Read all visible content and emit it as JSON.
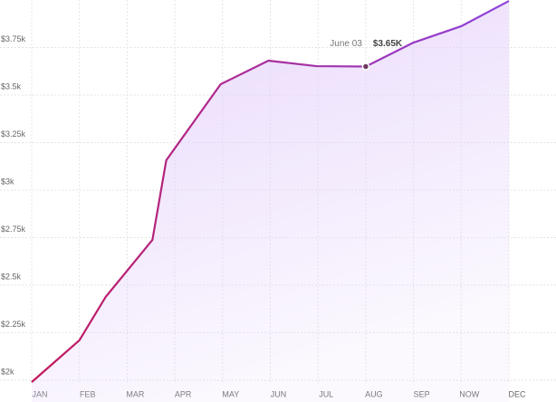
{
  "chart_data": {
    "type": "line",
    "x": [
      0,
      1,
      1.55,
      2.53,
      2.82,
      3.96,
      4.96,
      5.97,
      7,
      8,
      9,
      10
    ],
    "values": [
      1990,
      2210,
      2438,
      2738,
      3157,
      3557,
      3681,
      3652,
      3650,
      3776,
      3862,
      3995
    ],
    "color": "#c2185b",
    "color_end": "#8e44dd",
    "fill": "#e6d4fb",
    "xlim": [
      0,
      10
    ],
    "xticks": [
      {
        "value": 0,
        "label": "JAN"
      },
      {
        "value": 1,
        "label": "FEB"
      },
      {
        "value": 2,
        "label": "MAR"
      },
      {
        "value": 3,
        "label": "APR"
      },
      {
        "value": 4,
        "label": "MAY"
      },
      {
        "value": 5,
        "label": "JUN"
      },
      {
        "value": 6,
        "label": "JUL"
      },
      {
        "value": 7,
        "label": "AUG"
      },
      {
        "value": 8,
        "label": "SEP"
      },
      {
        "value": 9,
        "label": "NOW"
      },
      {
        "value": 10,
        "label": "DEC"
      }
    ],
    "ylim": [
      1990,
      4000
    ],
    "yticks": [
      {
        "value": 2000,
        "label": "$2k"
      },
      {
        "value": 2250,
        "label": "$2.25k"
      },
      {
        "value": 2500,
        "label": "$2.5k"
      },
      {
        "value": 2750,
        "label": "$2.75k"
      },
      {
        "value": 3000,
        "label": "$3k"
      },
      {
        "value": 3250,
        "label": "$3.25k"
      },
      {
        "value": 3500,
        "label": "$3.5k"
      },
      {
        "value": 3750,
        "label": "$3.75k"
      }
    ],
    "grid": true,
    "annotations": [
      {
        "x": 7,
        "value": 3650,
        "date": "June 03",
        "label": "$3.65K"
      }
    ]
  }
}
